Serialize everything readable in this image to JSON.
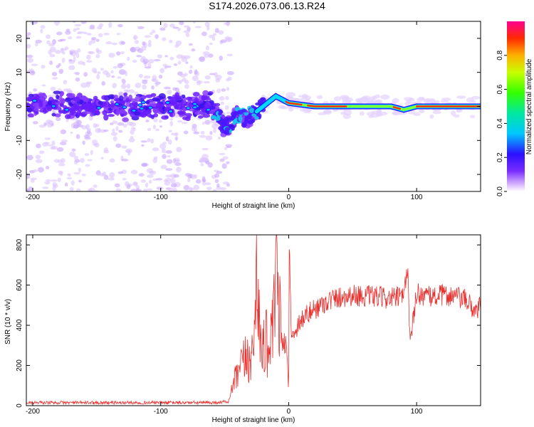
{
  "title": "S174.2026.073.06.13.R24",
  "chart_data": [
    {
      "type": "heatmap",
      "panel": "spectrogram",
      "xlabel": "Height of straight line (km)",
      "ylabel": "Frequency (Hz)",
      "xlim": [
        -205,
        150
      ],
      "ylim": [
        -25,
        25
      ],
      "xticks": [
        -200,
        -100,
        0,
        100
      ],
      "yticks": [
        -20,
        -10,
        0,
        10,
        20
      ],
      "colorbar": {
        "label": "Normalized spectral amplitude",
        "range": [
          0,
          1
        ],
        "ticks": [
          0.0,
          0.2,
          0.4,
          0.6,
          0.8
        ]
      },
      "trace": {
        "description_points": [
          {
            "x": -200,
            "y": 1
          },
          {
            "x": -150,
            "y": 0
          },
          {
            "x": -100,
            "y": 0
          },
          {
            "x": -60,
            "y": 0
          },
          {
            "x": -50,
            "y": -6
          },
          {
            "x": -40,
            "y": -3
          },
          {
            "x": -30,
            "y": -3
          },
          {
            "x": -20,
            "y": 0
          },
          {
            "x": -10,
            "y": 3
          },
          {
            "x": 0,
            "y": 1
          },
          {
            "x": 20,
            "y": 0
          },
          {
            "x": 80,
            "y": 0
          },
          {
            "x": 90,
            "y": -1
          },
          {
            "x": 100,
            "y": 0
          },
          {
            "x": 150,
            "y": 0
          }
        ]
      }
    },
    {
      "type": "line",
      "panel": "snr",
      "xlabel": "Height of straight line (km)",
      "ylabel": "SNR (10 * v/v)",
      "xlim": [
        -205,
        150
      ],
      "ylim": [
        0,
        850
      ],
      "xticks": [
        -200,
        -100,
        0,
        100
      ],
      "yticks": [
        0,
        200,
        400,
        600,
        800
      ],
      "series": [
        {
          "name": "SNR",
          "color": "#e8312f",
          "x": [
            -205,
            -150,
            -100,
            -60,
            -47,
            -43,
            -40,
            -35,
            -30,
            -27,
            -25,
            -22,
            -20,
            -15,
            -12,
            -10,
            -5,
            -2,
            0,
            0.5,
            2,
            5,
            10,
            20,
            30,
            40,
            50,
            60,
            70,
            80,
            90,
            93,
            95,
            100,
            110,
            120,
            130,
            140,
            145,
            150
          ],
          "values": [
            15,
            15,
            15,
            15,
            20,
            110,
            150,
            220,
            240,
            280,
            830,
            260,
            320,
            300,
            360,
            690,
            280,
            330,
            70,
            840,
            330,
            380,
            430,
            480,
            520,
            540,
            550,
            545,
            540,
            535,
            540,
            700,
            300,
            560,
            540,
            550,
            545,
            520,
            470,
            500
          ]
        }
      ]
    }
  ]
}
